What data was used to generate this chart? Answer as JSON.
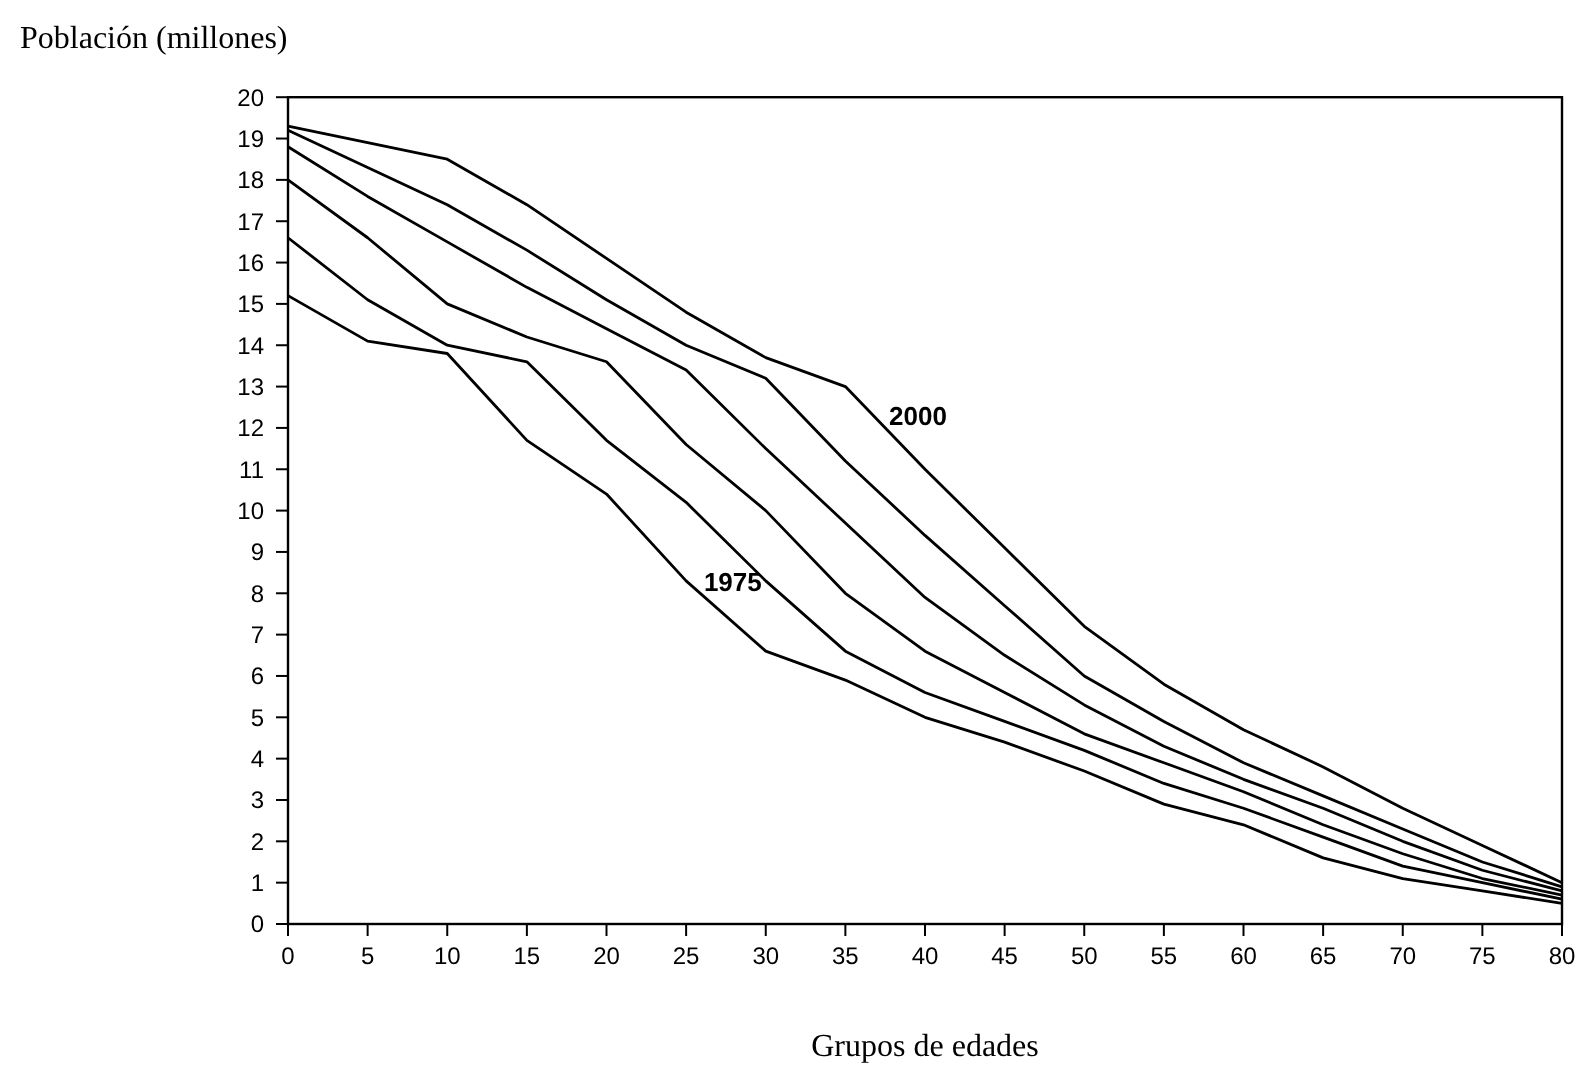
{
  "chart_data": {
    "type": "line",
    "ylabel": "Población (millones)",
    "xlabel": "Grupos de edades",
    "x": [
      0,
      5,
      10,
      15,
      20,
      25,
      30,
      35,
      40,
      45,
      50,
      55,
      60,
      65,
      70,
      75,
      80
    ],
    "xlim": [
      0,
      80
    ],
    "xticks": [
      0,
      5,
      10,
      15,
      20,
      25,
      30,
      35,
      40,
      45,
      50,
      55,
      60,
      65,
      70,
      75,
      80
    ],
    "ylim": [
      0,
      20
    ],
    "yticks": [
      0,
      1,
      2,
      3,
      4,
      5,
      6,
      7,
      8,
      9,
      10,
      11,
      12,
      13,
      14,
      15,
      16,
      17,
      18,
      19,
      20
    ],
    "grid": false,
    "marker": "none",
    "line_style": "solid",
    "series": [
      {
        "name": "1975",
        "color": "#000000",
        "values": [
          15.2,
          14.1,
          13.8,
          11.7,
          10.4,
          8.3,
          6.6,
          5.9,
          5.0,
          4.4,
          3.7,
          2.9,
          2.4,
          1.6,
          1.1,
          0.8,
          0.5
        ]
      },
      {
        "color": "#000000",
        "values": [
          16.6,
          15.1,
          14.0,
          13.6,
          11.7,
          10.2,
          8.3,
          6.6,
          5.6,
          4.9,
          4.2,
          3.4,
          2.8,
          2.1,
          1.4,
          1.0,
          0.6
        ]
      },
      {
        "color": "#000000",
        "values": [
          18.0,
          16.6,
          15.0,
          14.2,
          13.6,
          11.6,
          10.0,
          8.0,
          6.6,
          5.6,
          4.6,
          3.9,
          3.2,
          2.4,
          1.7,
          1.1,
          0.7
        ]
      },
      {
        "color": "#000000",
        "values": [
          18.8,
          17.6,
          16.5,
          15.4,
          14.4,
          13.4,
          11.5,
          9.7,
          7.9,
          6.5,
          5.3,
          4.3,
          3.5,
          2.8,
          2.0,
          1.3,
          0.8
        ]
      },
      {
        "color": "#000000",
        "values": [
          19.2,
          18.3,
          17.4,
          16.3,
          15.1,
          14.0,
          13.2,
          11.2,
          9.4,
          7.7,
          6.0,
          4.9,
          3.9,
          3.1,
          2.3,
          1.5,
          0.9
        ]
      },
      {
        "name": "2000",
        "color": "#000000",
        "values": [
          19.3,
          18.9,
          18.5,
          17.4,
          16.1,
          14.8,
          13.7,
          13.0,
          11.0,
          9.1,
          7.2,
          5.8,
          4.7,
          3.8,
          2.8,
          1.9,
          1.0
        ]
      }
    ]
  }
}
